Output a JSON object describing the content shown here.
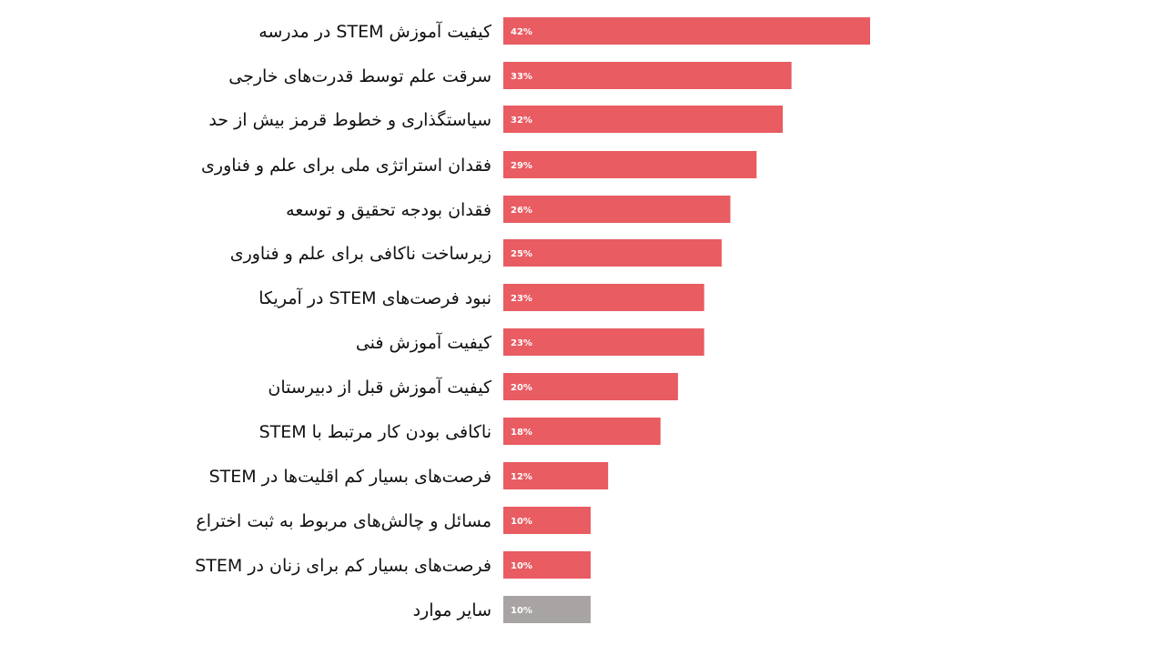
{
  "chart_data": {
    "type": "bar",
    "orientation": "horizontal",
    "categories": [
      "کیفیت آموزش STEM در مدرسه",
      "سرقت علم توسط قدرت‌های خارجی",
      "سیاستگذاری و خطوط قرمز بیش از حد",
      "فقدان استراتژی ملی برای علم و فناوری",
      "فقدان بودجه تحقیق و توسعه",
      "زیرساخت ناکافی برای علم و فناوری",
      "نبود فرصت‌های STEM در آمریکا",
      "کیفیت آموزش فنی",
      "کیفیت آموزش قبل از دبیرستان",
      "ناکافی بودن کار مرتبط با STEM",
      "فرصت‌های بسیار کم اقلیت‌ها در STEM",
      "مسائل و چالش‌های مربوط به ثبت اختراع",
      "فرصت‌های بسیار کم برای زنان در STEM",
      "سایر موارد"
    ],
    "values": [
      42,
      33,
      32,
      29,
      26,
      25,
      23,
      23,
      20,
      18,
      12,
      10,
      10,
      10
    ],
    "value_labels": [
      "42%",
      "33%",
      "32%",
      "29%",
      "26%",
      "25%",
      "23%",
      "23%",
      "20%",
      "18%",
      "12%",
      "10%",
      "10%",
      "10%"
    ],
    "unit": "%",
    "xlim": [
      0,
      42
    ],
    "grid": false,
    "legend": "none",
    "colors": {
      "bar": "#e85c62",
      "other_bar": "#a9a4a4",
      "value_text": "#ffffff",
      "label_text": "#111111"
    }
  }
}
